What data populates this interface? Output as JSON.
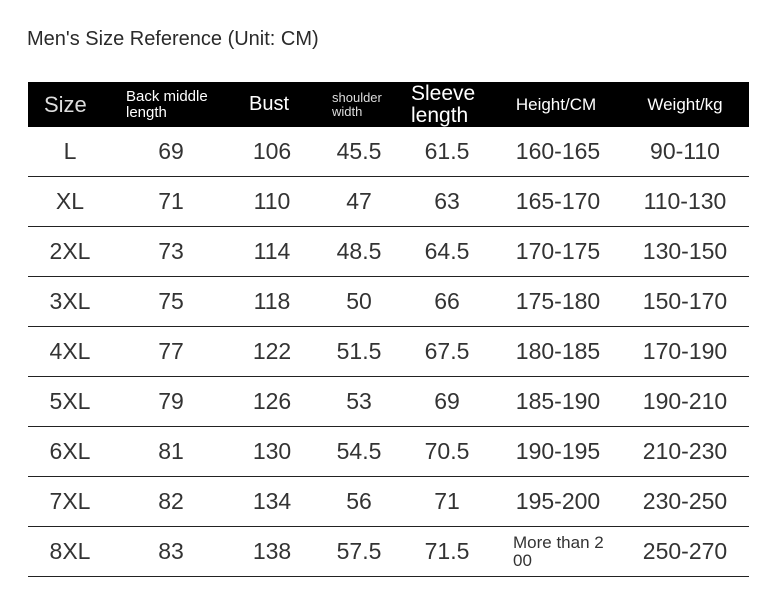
{
  "header": {
    "title": "Men's Size Reference (Unit: CM)"
  },
  "table": {
    "columns": [
      "Size",
      "Back middle length",
      "Bust",
      "shoulder width",
      "Sleeve length",
      "Height/CM",
      "Weight/kg"
    ],
    "rows": [
      [
        "L",
        "69",
        "106",
        "45.5",
        "61.5",
        "160-165",
        "90-110"
      ],
      [
        "XL",
        "71",
        "110",
        "47",
        "63",
        "165-170",
        "110-130"
      ],
      [
        "2XL",
        "73",
        "114",
        "48.5",
        "64.5",
        "170-175",
        "130-150"
      ],
      [
        "3XL",
        "75",
        "118",
        "50",
        "66",
        "175-180",
        "150-170"
      ],
      [
        "4XL",
        "77",
        "122",
        "51.5",
        "67.5",
        "180-185",
        "170-190"
      ],
      [
        "5XL",
        "79",
        "126",
        "53",
        "69",
        "185-190",
        "190-210"
      ],
      [
        "6XL",
        "81",
        "130",
        "54.5",
        "70.5",
        "190-195",
        "210-230"
      ],
      [
        "7XL",
        "82",
        "134",
        "56",
        "71",
        "195-200",
        "230-250"
      ],
      [
        "8XL",
        "83",
        "138",
        "57.5",
        "71.5",
        "More than 200",
        "250-270"
      ]
    ]
  }
}
